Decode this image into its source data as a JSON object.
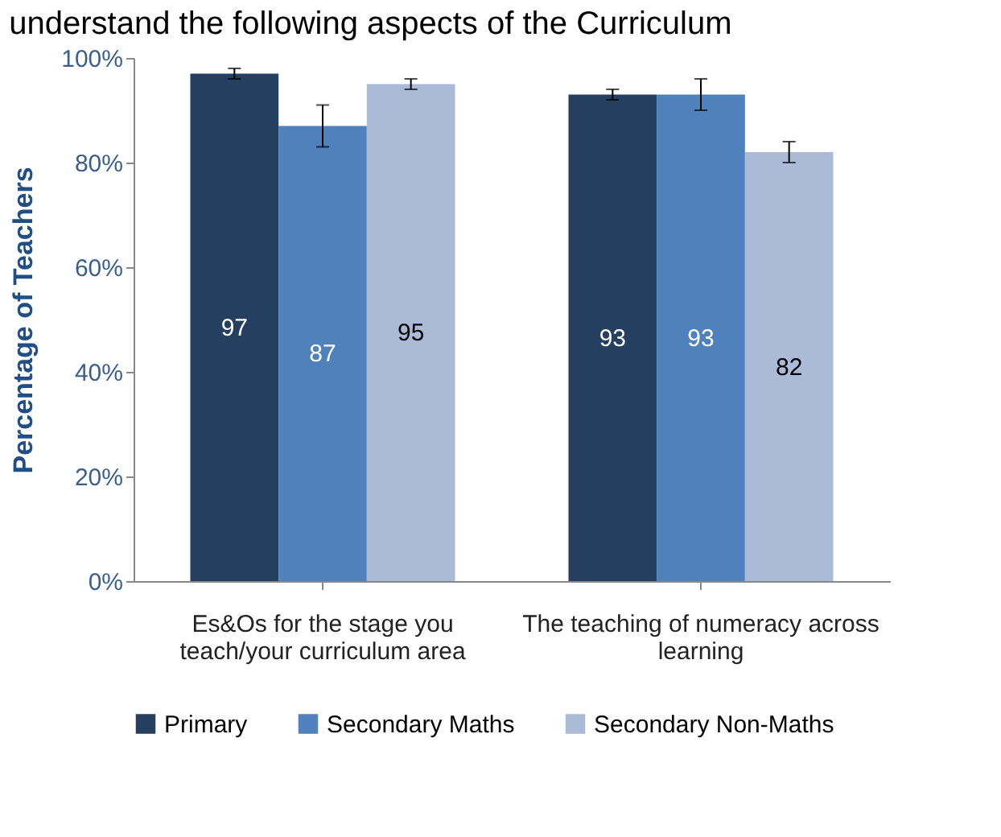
{
  "chart_data": {
    "type": "bar",
    "title": "understand the following aspects of the Curriculum",
    "ylabel": "Percentage of Teachers",
    "categories": [
      "Es&Os for the stage you teach/your curriculum area",
      "The teaching of numeracy across learning"
    ],
    "series": [
      {
        "name": "Primary",
        "color": "#243f60",
        "values": [
          97,
          93
        ],
        "errors": [
          1,
          1
        ]
      },
      {
        "name": "Secondary Maths",
        "color": "#4f81bd",
        "values": [
          87,
          93
        ],
        "errors": [
          4,
          3
        ]
      },
      {
        "name": "Secondary Non-Maths",
        "color": "#aabad7",
        "values": [
          95,
          82
        ],
        "errors": [
          1,
          2
        ]
      }
    ],
    "ylim": [
      0,
      100
    ],
    "yticks": [
      {
        "value": 0,
        "label": "0%"
      },
      {
        "value": 20,
        "label": "20%"
      },
      {
        "value": 40,
        "label": "40%"
      },
      {
        "value": 60,
        "label": "60%"
      },
      {
        "value": 80,
        "label": "80%"
      },
      {
        "value": 100,
        "label": "100%"
      }
    ],
    "data_labels": true,
    "grid": false,
    "legend": "bottom"
  }
}
